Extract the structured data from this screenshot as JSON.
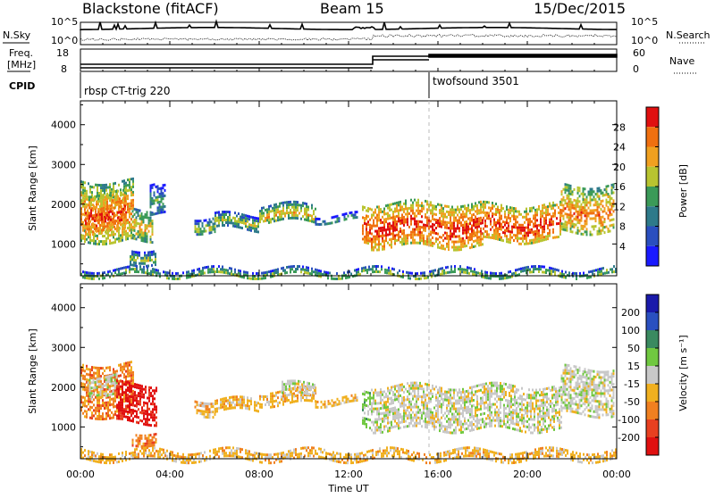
{
  "header": {
    "left_title": "Blackstone (fitACF)",
    "center_title": "Beam 15",
    "right_title": "15/Dec/2015"
  },
  "side_labels": {
    "nsky": "N.Sky",
    "freq_line1": "Freq.",
    "freq_line2": "[MHz]",
    "cpid": "CPID",
    "nsearch": "N.Search",
    "nave": "Nave"
  },
  "strips": {
    "noise_left_ticks": [
      "10^5",
      "10^0"
    ],
    "noise_right_ticks": [
      "10^5",
      "10^0"
    ],
    "freq_left_ticks": [
      "18",
      "8"
    ],
    "nave_right_ticks": [
      "60",
      "0"
    ]
  },
  "cpid_labels": [
    {
      "text": "rbsp CT-trig 220",
      "hour": 0.0
    },
    {
      "text": "twofsound 3501",
      "hour": 15.35
    }
  ],
  "chart_data": [
    {
      "type": "heatmap",
      "title": "Power",
      "xlabel": "",
      "ylabel": "Slant Range [km]",
      "x_range_hours": [
        0,
        24
      ],
      "x_ticks": [
        "00:00",
        "04:00",
        "08:00",
        "12:00",
        "16:00",
        "20:00",
        "00:00"
      ],
      "ylim": [
        200,
        4600
      ],
      "y_ticks": [
        1000,
        2000,
        3000,
        4000
      ],
      "colorbar": {
        "label": "Power [dB]",
        "ticks": [
          4,
          8,
          12,
          16,
          20,
          24,
          28
        ],
        "range": [
          0,
          32
        ],
        "colors": [
          "#1a1aff",
          "#2a4fbf",
          "#2e7a8a",
          "#3b9a58",
          "#b8c430",
          "#f0a020",
          "#f07010",
          "#e01010"
        ]
      },
      "regions": [
        {
          "t0": 0.0,
          "t1": 2.4,
          "r0": 1100,
          "r1": 2600,
          "level": 5
        },
        {
          "t0": 0.2,
          "t1": 2.0,
          "r0": 1300,
          "r1": 2300,
          "level": 6
        },
        {
          "t0": 2.3,
          "t1": 3.2,
          "r0": 1100,
          "r1": 1900,
          "level": 4
        },
        {
          "t0": 2.2,
          "t1": 3.4,
          "r0": 550,
          "r1": 900,
          "level": 3
        },
        {
          "t0": 3.1,
          "t1": 3.8,
          "r0": 1700,
          "r1": 2500,
          "level": 2
        },
        {
          "t0": 5.1,
          "t1": 6.0,
          "r0": 1300,
          "r1": 1700,
          "level": 3
        },
        {
          "t0": 6.0,
          "t1": 8.0,
          "r0": 1400,
          "r1": 1750,
          "level": 3
        },
        {
          "t0": 8.0,
          "t1": 10.5,
          "r0": 1550,
          "r1": 2000,
          "level": 4
        },
        {
          "t0": 10.5,
          "t1": 12.4,
          "r0": 1550,
          "r1": 1750,
          "level": 2
        },
        {
          "t0": 12.6,
          "t1": 13.0,
          "r0": 1000,
          "r1": 2000,
          "level": 6
        },
        {
          "t0": 13.0,
          "t1": 18.0,
          "r0": 950,
          "r1": 2050,
          "level": 6
        },
        {
          "t0": 18.0,
          "t1": 21.5,
          "r0": 1100,
          "r1": 2000,
          "level": 6
        },
        {
          "t0": 21.5,
          "t1": 23.9,
          "r0": 1300,
          "r1": 2500,
          "level": 5
        },
        {
          "t0": 0.0,
          "t1": 24.0,
          "r0": 180,
          "r1": 380,
          "level": 3
        }
      ]
    },
    {
      "type": "heatmap",
      "title": "Velocity",
      "xlabel": "Time UT",
      "ylabel": "Slant Range [km]",
      "x_range_hours": [
        0,
        24
      ],
      "x_ticks": [
        "00:00",
        "04:00",
        "08:00",
        "12:00",
        "16:00",
        "20:00",
        "00:00"
      ],
      "ylim": [
        200,
        4600
      ],
      "y_ticks": [
        1000,
        2000,
        3000,
        4000
      ],
      "colorbar": {
        "label": "Velocity [m s⁻¹]",
        "ticks": [
          200,
          100,
          50,
          15,
          -15,
          -50,
          -100,
          -200
        ],
        "colors": [
          "#1a1aaa",
          "#2a50c0",
          "#3a8a60",
          "#70c840",
          "#c8c8c8",
          "#f0b020",
          "#f08020",
          "#e84020",
          "#e01010"
        ]
      },
      "regions": [
        {
          "t0": 0.0,
          "t1": 2.4,
          "r0": 1300,
          "r1": 2600,
          "level": 6
        },
        {
          "t0": 0.3,
          "t1": 1.6,
          "r0": 1800,
          "r1": 2300,
          "level": 4
        },
        {
          "t0": 1.6,
          "t1": 3.4,
          "r0": 1100,
          "r1": 2100,
          "level": 8
        },
        {
          "t0": 2.3,
          "t1": 3.4,
          "r0": 600,
          "r1": 900,
          "level": 6
        },
        {
          "t0": 5.1,
          "t1": 6.0,
          "r0": 1300,
          "r1": 1700,
          "level": 5
        },
        {
          "t0": 6.0,
          "t1": 8.0,
          "r0": 1400,
          "r1": 1700,
          "level": 5
        },
        {
          "t0": 8.0,
          "t1": 10.5,
          "r0": 1550,
          "r1": 1950,
          "level": 5
        },
        {
          "t0": 9.0,
          "t1": 10.5,
          "r0": 1800,
          "r1": 2100,
          "level": 4
        },
        {
          "t0": 10.5,
          "t1": 12.4,
          "r0": 1550,
          "r1": 1750,
          "level": 5
        },
        {
          "t0": 12.6,
          "t1": 13.0,
          "r0": 1000,
          "r1": 1900,
          "level": 3
        },
        {
          "t0": 13.0,
          "t1": 21.5,
          "r0": 950,
          "r1": 2050,
          "level": 4
        },
        {
          "t0": 21.5,
          "t1": 23.9,
          "r0": 1300,
          "r1": 2500,
          "level": 4
        },
        {
          "t0": 0.0,
          "t1": 24.0,
          "r0": 180,
          "r1": 420,
          "level": 5
        }
      ]
    }
  ]
}
